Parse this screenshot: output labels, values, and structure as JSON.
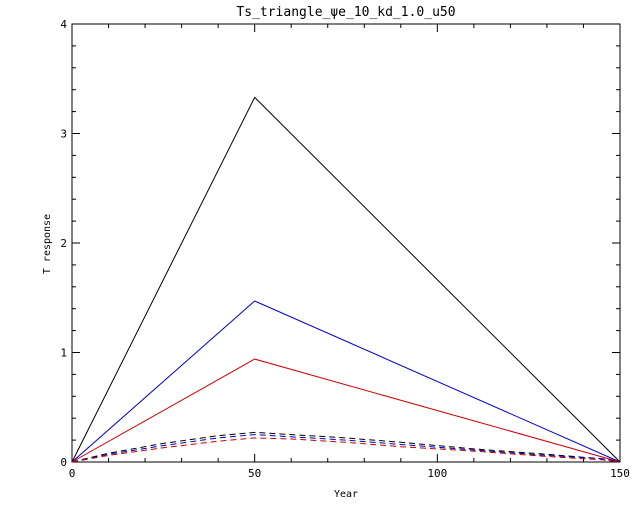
{
  "chart_data": {
    "type": "line",
    "title": "Ts_triangle_ψe_10_kd_1.0_u50",
    "xlabel": "Year",
    "ylabel": "T response",
    "xlim": [
      0,
      150
    ],
    "ylim": [
      0,
      4
    ],
    "xticks": [
      0,
      50,
      100,
      150
    ],
    "xtick_labels": [
      "0",
      "50",
      "100",
      "150"
    ],
    "yticks": [
      0,
      1,
      2,
      3,
      4
    ],
    "ytick_labels": [
      "0",
      "1",
      "2",
      "3",
      "4"
    ],
    "grid": false,
    "series": [
      {
        "color": "#000000",
        "style": "solid",
        "x": [
          0,
          50,
          150
        ],
        "y": [
          0,
          3.33,
          0
        ]
      },
      {
        "color": "#0000cc",
        "style": "solid",
        "x": [
          0,
          50,
          150
        ],
        "y": [
          0,
          1.47,
          0
        ]
      },
      {
        "color": "#cc0000",
        "style": "solid",
        "x": [
          0,
          50,
          150
        ],
        "y": [
          0,
          0.94,
          0
        ]
      },
      {
        "color": "#000000",
        "style": "dashed",
        "x": [
          0,
          10,
          25,
          40,
          50,
          60,
          75,
          90,
          110,
          130,
          145,
          150
        ],
        "y": [
          0,
          0.08,
          0.17,
          0.24,
          0.27,
          0.25,
          0.22,
          0.18,
          0.12,
          0.07,
          0.03,
          0
        ]
      },
      {
        "color": "#0000cc",
        "style": "dashed",
        "x": [
          0,
          10,
          25,
          40,
          50,
          60,
          75,
          90,
          110,
          130,
          145,
          150
        ],
        "y": [
          0,
          0.07,
          0.15,
          0.22,
          0.25,
          0.23,
          0.2,
          0.16,
          0.11,
          0.06,
          0.03,
          0
        ]
      },
      {
        "color": "#cc0000",
        "style": "dashed",
        "x": [
          0,
          10,
          25,
          40,
          50,
          60,
          75,
          90,
          110,
          130,
          145,
          150
        ],
        "y": [
          0,
          0.06,
          0.13,
          0.19,
          0.22,
          0.21,
          0.18,
          0.14,
          0.1,
          0.05,
          0.02,
          0
        ]
      }
    ]
  }
}
